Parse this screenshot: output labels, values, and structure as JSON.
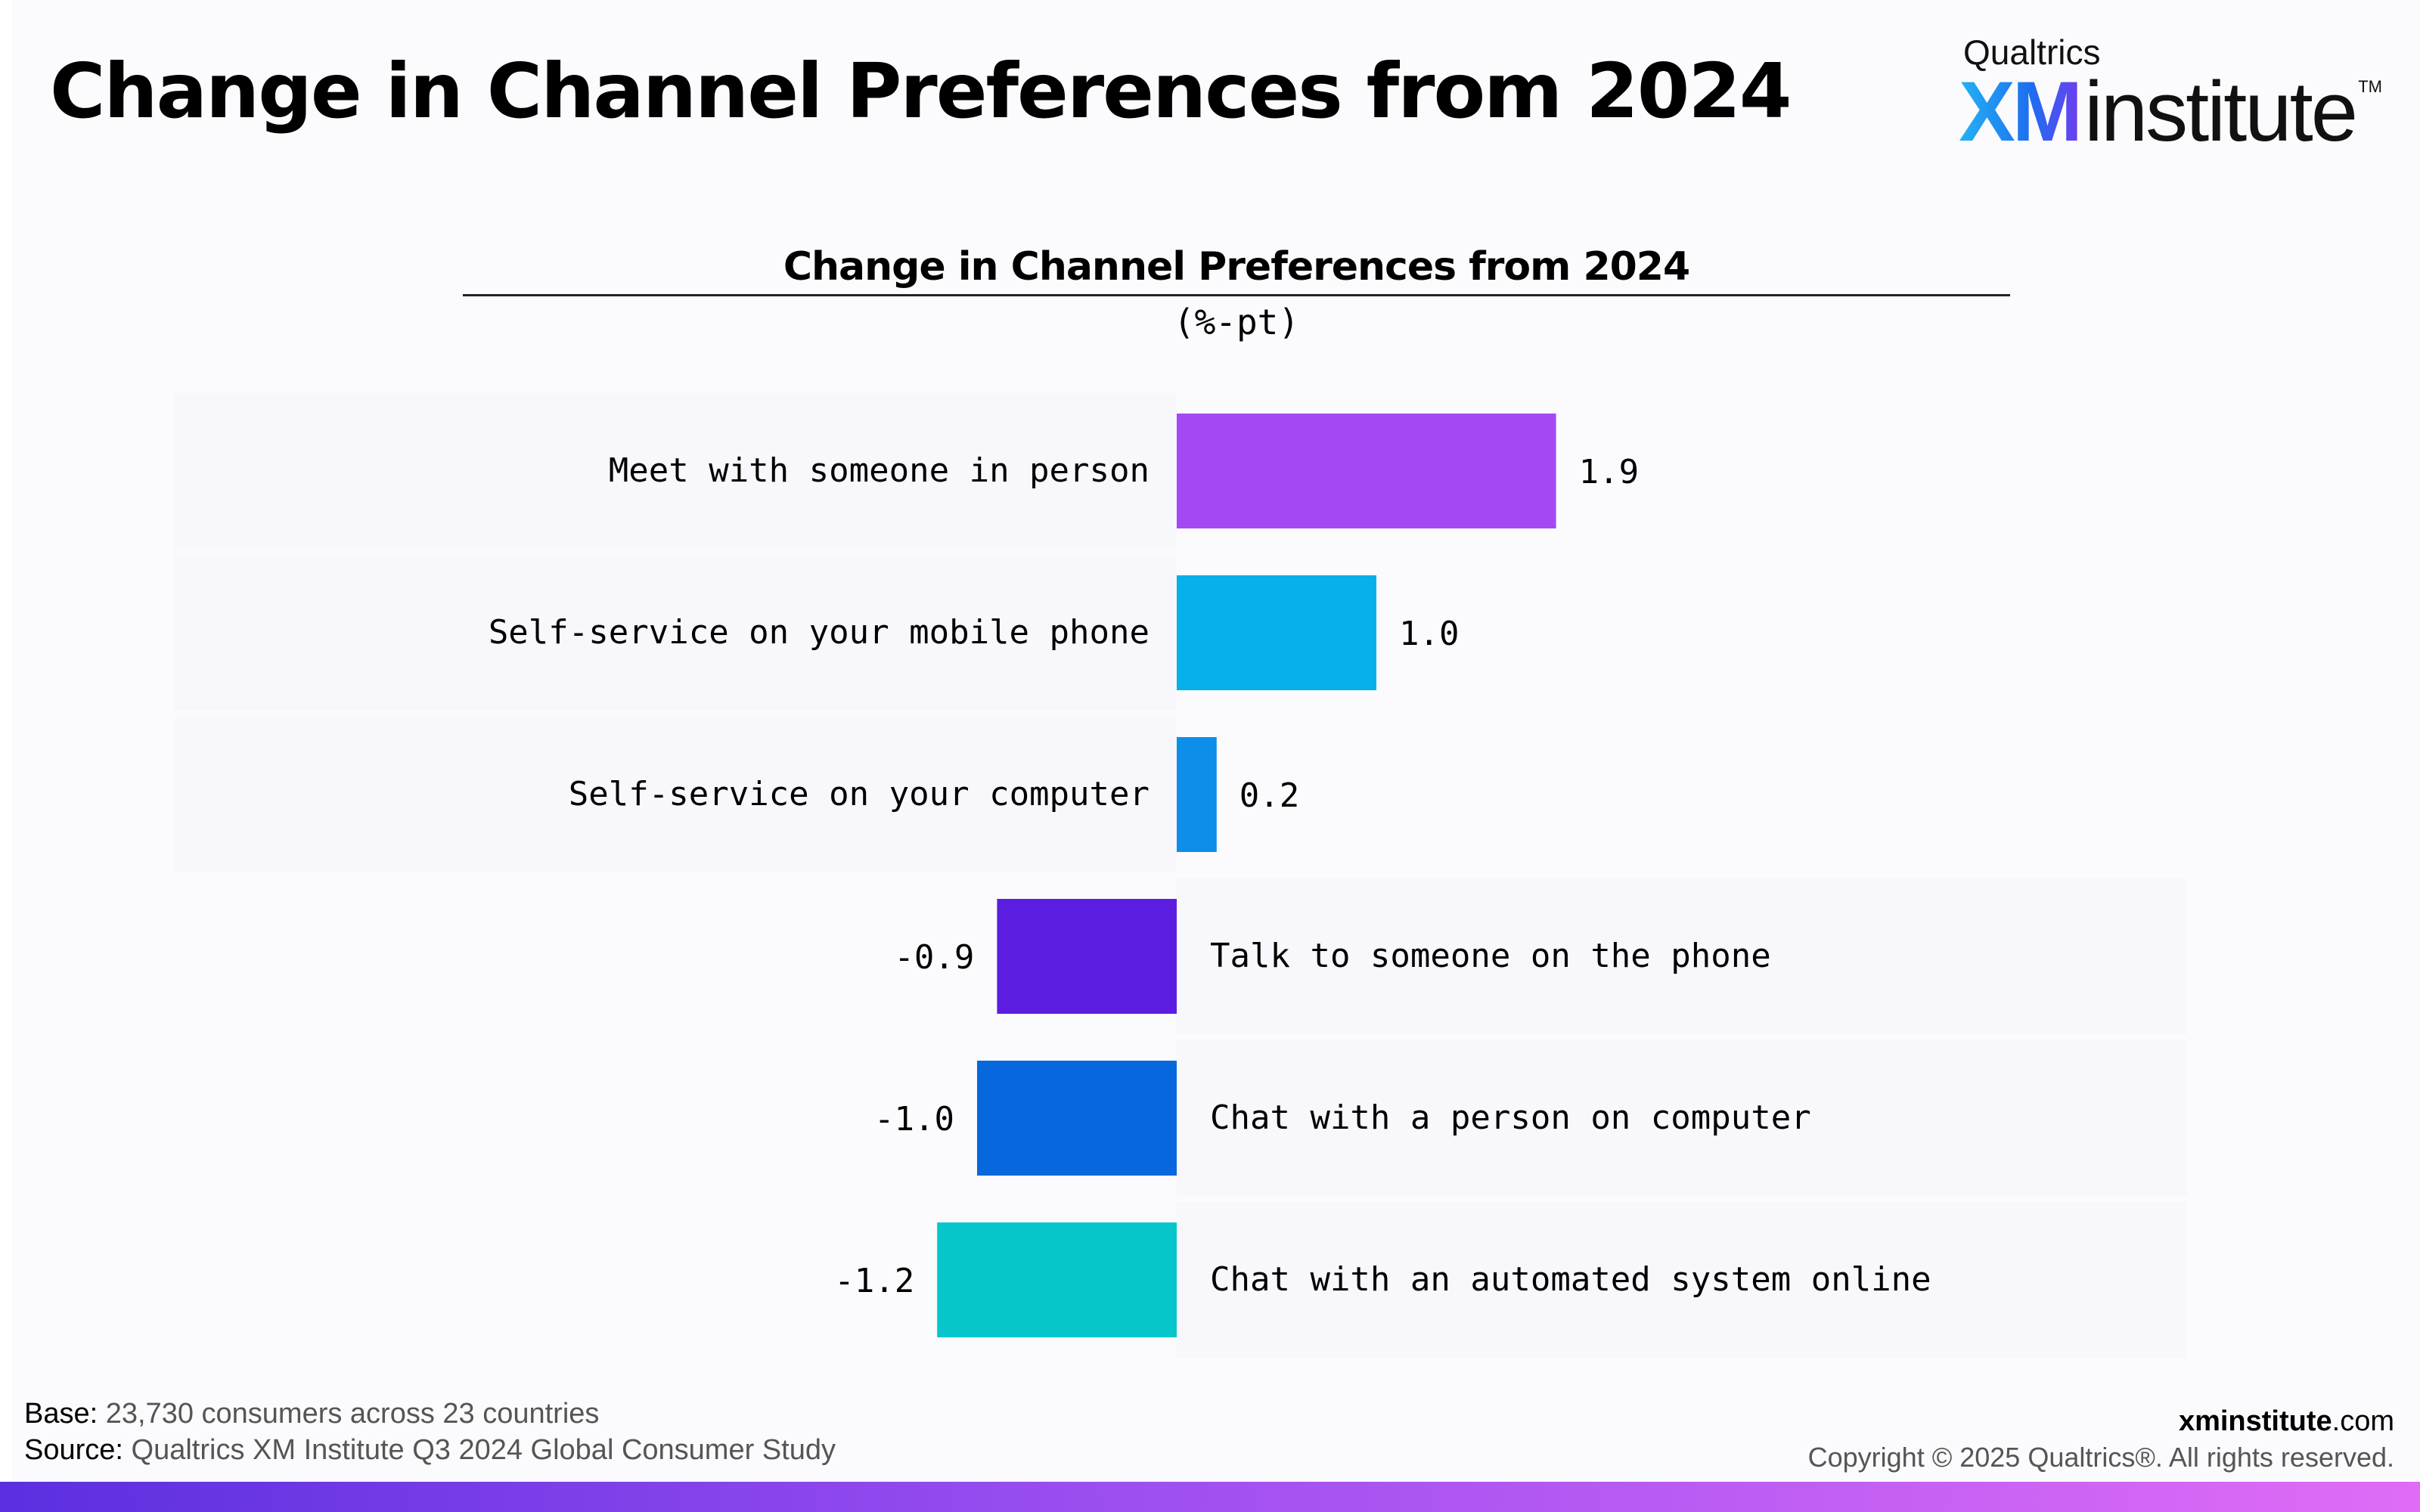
{
  "page": {
    "title": "Change in Channel Preferences from 2024"
  },
  "logo": {
    "company": "Qualtrics",
    "brand": "XM",
    "word": "institute",
    "trademark": "TM"
  },
  "chart_data": {
    "type": "bar",
    "orientation": "horizontal",
    "title": "Change in Channel Preferences from 2024",
    "subtitle": "(%-pt)",
    "categories": [
      "Meet with someone in person",
      "Self-service on your mobile phone",
      "Self-service on your computer",
      "Talk to someone on the phone",
      "Chat with a person on computer",
      "Chat with an automated system online"
    ],
    "values": [
      1.9,
      1.0,
      0.2,
      -0.9,
      -1.0,
      -1.2
    ],
    "value_labels": [
      "1.9",
      "1.0",
      "0.2",
      "-0.9",
      "-1.0",
      "-1.2"
    ],
    "colors": [
      "#a349f3",
      "#06b0ea",
      "#0d8ee8",
      "#5b1ee0",
      "#0768de",
      "#06c6cc"
    ],
    "grid": false,
    "legend": "none"
  },
  "footer": {
    "base_label": "Base:",
    "base_text": "23,730 consumers across 23 countries",
    "source_label": "Source:",
    "source_text": "Qualtrics XM Institute Q3 2024 Global Consumer Study",
    "site_bold": "xminstitute",
    "site_rest": ".com",
    "copyright": "Copyright © 2025 Qualtrics®. All rights reserved."
  },
  "colors": {
    "background": "#fbfbfe",
    "bottom_bar_start": "#5b2fe0",
    "bottom_bar_end": "#e06cf6",
    "logo_gradient_start": "#23b3f4",
    "logo_gradient_end": "#6f3df0"
  }
}
